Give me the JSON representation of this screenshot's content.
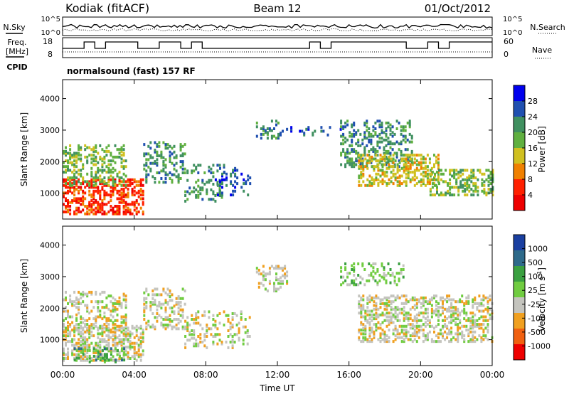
{
  "header": {
    "station": "Kodiak (fitACF)",
    "beam": "Beam 12",
    "date": "01/Oct/2012"
  },
  "top_panels": {
    "nsky_label": "N.Sky",
    "nsky_ticks": [
      "10^5",
      "10^0"
    ],
    "nsearch_label": "N.Search",
    "nsearch_ticks": [
      "10^5",
      "10^0"
    ],
    "freq_label_1": "Freq.",
    "freq_label_2": "[MHz]",
    "freq_ticks": [
      "18",
      "8"
    ],
    "nave_label": "Nave",
    "nave_ticks": [
      "60",
      "0"
    ],
    "cpid_label": "CPID",
    "cpid_value": "normalsound (fast) 157 RF"
  },
  "chart_data": [
    {
      "type": "heatmap",
      "name": "power",
      "ylabel": "Slant Range [km]",
      "yticks": [
        "4000",
        "3000",
        "2000",
        "1000"
      ],
      "ytick_values": [
        4000,
        3000,
        2000,
        1000
      ],
      "ylim": [
        180,
        4600
      ],
      "xlim": [
        0,
        24
      ],
      "colorbar_label": "Power [dB]",
      "colorbar_ticks": [
        "28",
        "24",
        "20",
        "16",
        "12",
        "8",
        "4"
      ],
      "colors": [
        "#0000ee",
        "#2050b0",
        "#409060",
        "#60b040",
        "#d0c020",
        "#f08000",
        "#ff2000",
        "#ee0000"
      ],
      "blobs": [
        {
          "t0": 0.0,
          "t1": 4.5,
          "r0": 300,
          "r1": 1400,
          "level": 6,
          "density": 0.9
        },
        {
          "t0": 0.0,
          "t1": 3.5,
          "r0": 1200,
          "r1": 2500,
          "level": 3,
          "density": 0.6
        },
        {
          "t0": 4.5,
          "t1": 6.8,
          "r0": 1300,
          "r1": 2600,
          "level": 2,
          "density": 0.55
        },
        {
          "t0": 6.8,
          "t1": 9.0,
          "r0": 700,
          "r1": 1900,
          "level": 2,
          "density": 0.4
        },
        {
          "t0": 8.5,
          "t1": 10.5,
          "r0": 900,
          "r1": 1800,
          "level": 1,
          "density": 0.35
        },
        {
          "t0": 10.8,
          "t1": 12.2,
          "r0": 2700,
          "r1": 3300,
          "level": 2,
          "density": 0.5
        },
        {
          "t0": 12.0,
          "t1": 15.5,
          "r0": 2800,
          "r1": 3100,
          "level": 1,
          "density": 0.3
        },
        {
          "t0": 15.5,
          "t1": 19.5,
          "r0": 1800,
          "r1": 3300,
          "level": 2,
          "density": 0.55
        },
        {
          "t0": 16.5,
          "t1": 21.0,
          "r0": 1200,
          "r1": 2200,
          "level": 4,
          "density": 0.75
        },
        {
          "t0": 20.5,
          "t1": 24.0,
          "r0": 900,
          "r1": 1700,
          "level": 3,
          "density": 0.7
        }
      ]
    },
    {
      "type": "heatmap",
      "name": "velocity",
      "ylabel": "Slant Range [km]",
      "yticks": [
        "4000",
        "3000",
        "2000",
        "1000"
      ],
      "ytick_values": [
        4000,
        3000,
        2000,
        1000
      ],
      "ylim": [
        180,
        4600
      ],
      "xlim": [
        0,
        24
      ],
      "xticks": [
        "00:00",
        "04:00",
        "08:00",
        "12:00",
        "16:00",
        "20:00",
        "00:00"
      ],
      "xtick_values": [
        0,
        4,
        8,
        12,
        16,
        20,
        24
      ],
      "xlabel": "Time UT",
      "colorbar_label": "Velocity [m s",
      "colorbar_label_sup": "-1",
      "colorbar_label_end": "]",
      "colorbar_ticks": [
        "1000",
        "500",
        "100",
        "25",
        "-25",
        "-100",
        "-500",
        "-1000"
      ],
      "colors": [
        "#1a3fa0",
        "#2e6a8a",
        "#3aa040",
        "#70cc40",
        "#c4c4be",
        "#f0a020",
        "#f06010",
        "#ee0000"
      ],
      "blobs": [
        {
          "t0": 0.0,
          "t1": 4.5,
          "r0": 300,
          "r1": 1400,
          "level": 4,
          "density": 0.85
        },
        {
          "t0": 0.5,
          "t1": 3.5,
          "r0": 250,
          "r1": 700,
          "level": 2,
          "density": 0.6
        },
        {
          "t0": 0.0,
          "t1": 3.5,
          "r0": 1200,
          "r1": 2500,
          "level": 4,
          "density": 0.55
        },
        {
          "t0": 4.5,
          "t1": 6.8,
          "r0": 1300,
          "r1": 2600,
          "level": 4,
          "density": 0.55
        },
        {
          "t0": 6.8,
          "t1": 10.5,
          "r0": 700,
          "r1": 1900,
          "level": 4,
          "density": 0.4
        },
        {
          "t0": 10.8,
          "t1": 12.5,
          "r0": 2500,
          "r1": 3300,
          "level": 4,
          "density": 0.45
        },
        {
          "t0": 15.5,
          "t1": 19.0,
          "r0": 2700,
          "r1": 3400,
          "level": 3,
          "density": 0.5
        },
        {
          "t0": 16.5,
          "t1": 24.0,
          "r0": 900,
          "r1": 2400,
          "level": 4,
          "density": 0.75
        }
      ]
    }
  ]
}
